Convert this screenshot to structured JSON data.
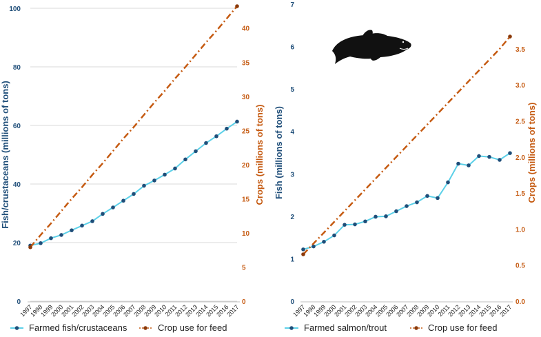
{
  "chart_data": [
    {
      "type": "line",
      "x": [
        1997,
        1998,
        1999,
        2000,
        2001,
        2002,
        2003,
        2004,
        2005,
        2006,
        2007,
        2008,
        2009,
        2010,
        2011,
        2012,
        2013,
        2014,
        2015,
        2016,
        2017
      ],
      "xtick_labels": [
        "1997",
        "1998",
        "1999",
        "2000",
        "2001",
        "2002",
        "2003",
        "2004",
        "2005",
        "2006",
        "2007",
        "2008",
        "2009",
        "2010",
        "2011",
        "2012",
        "2013",
        "2014",
        "2015",
        "2016",
        "2017"
      ],
      "ylabel": "Fish/crustaceans (millions of tons)",
      "ylabel_right": "Crops (millions of tons)",
      "ylim": [
        0,
        100
      ],
      "ylim_right": [
        0,
        42.9
      ],
      "yticks": [
        0,
        20,
        40,
        60,
        80,
        100
      ],
      "yticks_right": [
        0,
        5,
        10,
        15,
        20,
        25,
        30,
        35,
        40
      ],
      "grid": true,
      "legend_position": "bottom",
      "series": [
        {
          "name": "Farmed fish/crustaceans",
          "axis": "left",
          "color": "#5bd0e8",
          "marker_color": "#1f4e79",
          "style": "solid",
          "values": [
            19.0,
            19.8,
            21.5,
            22.6,
            24.2,
            25.8,
            27.3,
            29.8,
            32.0,
            34.3,
            36.6,
            39.4,
            41.2,
            43.2,
            45.3,
            48.4,
            51.2,
            54.0,
            56.3,
            58.9,
            61.3
          ]
        },
        {
          "name": "Crop use for feed",
          "axis": "right",
          "color": "#c55a11",
          "marker_color": "#8b3a0a",
          "style": "dashdot",
          "values": [
            7.9,
            9.7,
            11.4,
            13.2,
            15.0,
            16.7,
            18.5,
            20.2,
            22.0,
            23.8,
            25.5,
            27.3,
            29.1,
            30.8,
            32.6,
            34.3,
            36.1,
            37.9,
            39.6,
            41.4,
            43.2
          ]
        }
      ]
    },
    {
      "type": "line",
      "x": [
        1997,
        1998,
        1999,
        2000,
        2001,
        2002,
        2003,
        2004,
        2005,
        2006,
        2007,
        2008,
        2009,
        2010,
        2011,
        2012,
        2013,
        2014,
        2015,
        2016,
        2017
      ],
      "xtick_labels": [
        "1997",
        "1998",
        "1999",
        "2000",
        "2001",
        "2002",
        "2003",
        "2004",
        "2005",
        "2006",
        "2007",
        "2008",
        "2009",
        "2010",
        "2011",
        "2012",
        "2013",
        "2014",
        "2015",
        "2016",
        "2017"
      ],
      "ylabel": "Fish (millions of tons)",
      "ylabel_right": "Crops (millions of tons)",
      "ylim": [
        0,
        7
      ],
      "ylim_right": [
        0,
        4.12
      ],
      "yticks": [
        0,
        1,
        2,
        3,
        4,
        5,
        6,
        7
      ],
      "yticks_right": [
        "0.0",
        "0.5",
        "1.0",
        "1.5",
        "2.0",
        "2.5",
        "3.0",
        "3.5"
      ],
      "grid": false,
      "legend_position": "bottom",
      "icon": "salmon-fish-icon",
      "series": [
        {
          "name": "Farmed salmon/trout",
          "axis": "left",
          "color": "#5bd0e8",
          "marker_color": "#1f4e79",
          "style": "solid",
          "values": [
            1.22,
            1.29,
            1.4,
            1.55,
            1.8,
            1.81,
            1.88,
            1.99,
            2.0,
            2.12,
            2.24,
            2.33,
            2.48,
            2.43,
            2.8,
            3.24,
            3.2,
            3.42,
            3.4,
            3.33,
            3.49
          ]
        },
        {
          "name": "Crop use for feed",
          "axis": "right",
          "color": "#c55a11",
          "marker_color": "#8b3a0a",
          "style": "dashdot",
          "values": [
            0.65,
            0.8,
            0.95,
            1.1,
            1.25,
            1.4,
            1.55,
            1.7,
            1.85,
            2.0,
            2.15,
            2.3,
            2.45,
            2.6,
            2.75,
            2.9,
            3.05,
            3.2,
            3.35,
            3.5,
            3.67
          ]
        }
      ]
    }
  ]
}
